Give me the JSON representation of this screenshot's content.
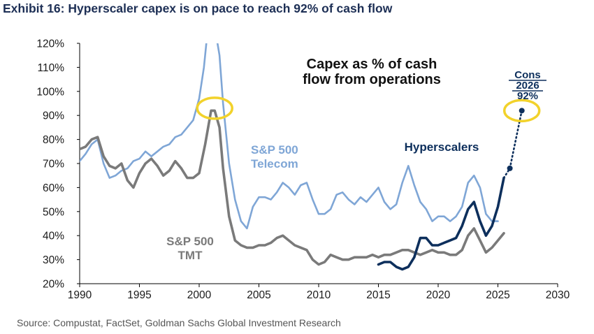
{
  "exhibit_title": "Exhibit 16: Hyperscaler capex is on pace to reach 92% of cash flow",
  "source": "Source: Compustat, FactSet, Goldman Sachs Global Investment Research",
  "colors": {
    "telecom": "#7fa6d6",
    "tmt": "#7a7a7a",
    "hyperscalers": "#0d2f5c",
    "highlight": "#f2d22b",
    "axis": "#000000"
  },
  "chart_data": {
    "type": "line",
    "title": "Capex as % of cash flow from operations",
    "title_lines": [
      "Capex as % of cash",
      "flow from operations"
    ],
    "xlim": [
      1990,
      2030
    ],
    "ylim": [
      20,
      120
    ],
    "x_ticks": [
      "1990",
      "1995",
      "2000",
      "2005",
      "2010",
      "2015",
      "2020",
      "2025",
      "2030"
    ],
    "y_ticks": [
      "20%",
      "30%",
      "40%",
      "50%",
      "60%",
      "70%",
      "80%",
      "90%",
      "100%",
      "110%",
      "120%"
    ],
    "grid": false,
    "series": [
      {
        "name": "S&P 500 Telecom",
        "label_lines": [
          "S&P 500",
          "Telecom"
        ],
        "points": [
          [
            1990,
            71
          ],
          [
            1990.5,
            74
          ],
          [
            1991,
            78
          ],
          [
            1991.5,
            80
          ],
          [
            1992,
            70
          ],
          [
            1992.5,
            64
          ],
          [
            1993,
            65
          ],
          [
            1993.5,
            67
          ],
          [
            1994,
            68
          ],
          [
            1994.5,
            71
          ],
          [
            1995,
            72
          ],
          [
            1995.5,
            75
          ],
          [
            1996,
            73
          ],
          [
            1996.5,
            75
          ],
          [
            1997,
            77
          ],
          [
            1997.5,
            78
          ],
          [
            1998,
            81
          ],
          [
            1998.5,
            82
          ],
          [
            1999,
            85
          ],
          [
            1999.5,
            88
          ],
          [
            2000,
            97
          ],
          [
            2000.4,
            110
          ],
          [
            2000.7,
            125
          ],
          [
            2001,
            135
          ],
          [
            2001.3,
            127
          ],
          [
            2001.7,
            115
          ],
          [
            2002,
            95
          ],
          [
            2002.5,
            70
          ],
          [
            2003,
            55
          ],
          [
            2003.5,
            46
          ],
          [
            2004,
            43
          ],
          [
            2004.5,
            52
          ],
          [
            2005,
            56
          ],
          [
            2005.5,
            56
          ],
          [
            2006,
            55
          ],
          [
            2006.5,
            58
          ],
          [
            2007,
            62
          ],
          [
            2007.5,
            60
          ],
          [
            2008,
            57
          ],
          [
            2008.5,
            61
          ],
          [
            2009,
            62
          ],
          [
            2009.5,
            55
          ],
          [
            2010,
            49
          ],
          [
            2010.5,
            49
          ],
          [
            2011,
            51
          ],
          [
            2011.5,
            57
          ],
          [
            2012,
            58
          ],
          [
            2012.5,
            55
          ],
          [
            2013,
            53
          ],
          [
            2013.5,
            56
          ],
          [
            2014,
            54
          ],
          [
            2014.5,
            57
          ],
          [
            2015,
            60
          ],
          [
            2015.5,
            54
          ],
          [
            2016,
            51
          ],
          [
            2016.5,
            53
          ],
          [
            2017,
            62
          ],
          [
            2017.5,
            69
          ],
          [
            2018,
            61
          ],
          [
            2018.5,
            54
          ],
          [
            2019,
            51
          ],
          [
            2019.5,
            46
          ],
          [
            2020,
            48
          ],
          [
            2020.5,
            48
          ],
          [
            2021,
            46
          ],
          [
            2021.5,
            48
          ],
          [
            2022,
            52
          ],
          [
            2022.5,
            62
          ],
          [
            2023,
            65
          ],
          [
            2023.5,
            60
          ],
          [
            2024,
            49
          ],
          [
            2024.5,
            46
          ],
          [
            2025,
            46
          ]
        ]
      },
      {
        "name": "S&P 500 TMT",
        "label_lines": [
          "S&P 500",
          "TMT"
        ],
        "points": [
          [
            1990,
            76
          ],
          [
            1990.5,
            77
          ],
          [
            1991,
            80
          ],
          [
            1991.5,
            81
          ],
          [
            1992,
            73
          ],
          [
            1992.5,
            69
          ],
          [
            1993,
            68
          ],
          [
            1993.5,
            70
          ],
          [
            1994,
            63
          ],
          [
            1994.5,
            60
          ],
          [
            1995,
            66
          ],
          [
            1995.5,
            70
          ],
          [
            1996,
            72
          ],
          [
            1996.5,
            69
          ],
          [
            1997,
            65
          ],
          [
            1997.5,
            67
          ],
          [
            1998,
            71
          ],
          [
            1998.5,
            68
          ],
          [
            1999,
            64
          ],
          [
            1999.5,
            64
          ],
          [
            2000,
            66
          ],
          [
            2000.5,
            78
          ],
          [
            2001,
            92
          ],
          [
            2001.3,
            92
          ],
          [
            2001.7,
            85
          ],
          [
            2002,
            68
          ],
          [
            2002.5,
            48
          ],
          [
            2003,
            38
          ],
          [
            2003.5,
            36
          ],
          [
            2004,
            35
          ],
          [
            2004.5,
            35
          ],
          [
            2005,
            36
          ],
          [
            2005.5,
            36
          ],
          [
            2006,
            37
          ],
          [
            2006.5,
            39
          ],
          [
            2007,
            40
          ],
          [
            2007.5,
            38
          ],
          [
            2008,
            36
          ],
          [
            2008.5,
            35
          ],
          [
            2009,
            34
          ],
          [
            2009.5,
            30
          ],
          [
            2010,
            28
          ],
          [
            2010.5,
            29
          ],
          [
            2011,
            32
          ],
          [
            2011.5,
            31
          ],
          [
            2012,
            30
          ],
          [
            2012.5,
            30
          ],
          [
            2013,
            31
          ],
          [
            2013.5,
            31
          ],
          [
            2014,
            31
          ],
          [
            2014.5,
            32
          ],
          [
            2015,
            31
          ],
          [
            2015.5,
            32
          ],
          [
            2016,
            32
          ],
          [
            2016.5,
            33
          ],
          [
            2017,
            34
          ],
          [
            2017.5,
            34
          ],
          [
            2018,
            33
          ],
          [
            2018.5,
            32
          ],
          [
            2019,
            33
          ],
          [
            2019.5,
            34
          ],
          [
            2020,
            33
          ],
          [
            2020.5,
            33
          ],
          [
            2021,
            32
          ],
          [
            2021.5,
            32
          ],
          [
            2022,
            34
          ],
          [
            2022.5,
            40
          ],
          [
            2023,
            43
          ],
          [
            2023.5,
            38
          ],
          [
            2024,
            33
          ],
          [
            2024.5,
            35
          ],
          [
            2025,
            38
          ],
          [
            2025.5,
            41
          ]
        ]
      },
      {
        "name": "Hyperscalers",
        "points": [
          [
            2015,
            28
          ],
          [
            2015.5,
            29
          ],
          [
            2016,
            29
          ],
          [
            2016.5,
            27
          ],
          [
            2017,
            26
          ],
          [
            2017.5,
            27
          ],
          [
            2018,
            31
          ],
          [
            2018.5,
            39
          ],
          [
            2019,
            39
          ],
          [
            2019.5,
            36
          ],
          [
            2020,
            36
          ],
          [
            2020.5,
            37
          ],
          [
            2021,
            38
          ],
          [
            2021.5,
            39
          ],
          [
            2022,
            44
          ],
          [
            2022.5,
            51
          ],
          [
            2023,
            54
          ],
          [
            2023.5,
            46
          ],
          [
            2024,
            40
          ],
          [
            2024.5,
            44
          ],
          [
            2025,
            52
          ],
          [
            2025.5,
            64
          ]
        ]
      }
    ],
    "projection": {
      "points": [
        [
          2025.5,
          64
        ],
        [
          2026,
          68
        ],
        [
          2027,
          92
        ]
      ],
      "style": "dotted"
    },
    "annotation": {
      "label_lines": [
        "Cons",
        "2026",
        "92%"
      ],
      "x": 2027,
      "y": 92
    },
    "highlights": [
      {
        "x": 2001.3,
        "y": 93
      },
      {
        "x": 2027,
        "y": 92
      }
    ]
  }
}
